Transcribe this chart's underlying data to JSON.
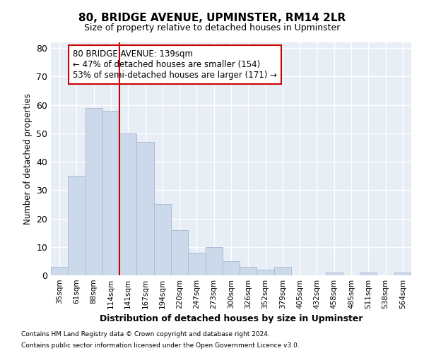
{
  "title": "80, BRIDGE AVENUE, UPMINSTER, RM14 2LR",
  "subtitle": "Size of property relative to detached houses in Upminster",
  "xlabel": "Distribution of detached houses by size in Upminster",
  "ylabel": "Number of detached properties",
  "bar_color": "#ccd9ea",
  "bar_edgecolor": "#aabdd6",
  "background_color": "#e8eef5",
  "grid_color": "#ffffff",
  "categories": [
    "35sqm",
    "61sqm",
    "88sqm",
    "114sqm",
    "141sqm",
    "167sqm",
    "194sqm",
    "220sqm",
    "247sqm",
    "273sqm",
    "300sqm",
    "326sqm",
    "352sqm",
    "379sqm",
    "405sqm",
    "432sqm",
    "458sqm",
    "485sqm",
    "511sqm",
    "538sqm",
    "564sqm"
  ],
  "values": [
    3,
    35,
    59,
    58,
    50,
    47,
    25,
    16,
    8,
    10,
    5,
    3,
    2,
    3,
    0,
    0,
    1,
    0,
    1,
    0,
    1
  ],
  "vline_idx": 4,
  "vline_color": "#cc0000",
  "annotation_text": "80 BRIDGE AVENUE: 139sqm\n← 47% of detached houses are smaller (154)\n53% of semi-detached houses are larger (171) →",
  "annotation_box_color": "#ffffff",
  "annotation_box_edgecolor": "#cc0000",
  "footnote1": "Contains HM Land Registry data © Crown copyright and database right 2024.",
  "footnote2": "Contains public sector information licensed under the Open Government Licence v3.0.",
  "ylim": [
    0,
    82
  ],
  "yticks": [
    0,
    10,
    20,
    30,
    40,
    50,
    60,
    70,
    80
  ]
}
